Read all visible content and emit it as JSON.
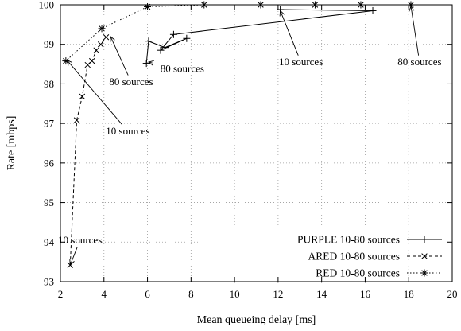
{
  "chart_data": {
    "type": "line",
    "xlabel": "Mean queueing delay [ms]",
    "ylabel": "Rate [mbps]",
    "xlim": [
      2,
      20
    ],
    "ylim": [
      93,
      100
    ],
    "xticks": [
      2,
      4,
      6,
      8,
      10,
      12,
      14,
      16,
      18,
      20
    ],
    "yticks": [
      93,
      94,
      95,
      96,
      97,
      98,
      99,
      100
    ],
    "x_tick_labels": [
      "2",
      "4",
      "6",
      "8",
      "10",
      "12",
      "14",
      "16",
      "18",
      "20"
    ],
    "y_tick_labels": [
      "93",
      "94",
      "95",
      "96",
      "97",
      "98",
      "99",
      "100"
    ],
    "grid": true,
    "legend_position": "bottom-right",
    "series": [
      {
        "name": "PURPLE 10-80 sources",
        "marker": "plus",
        "dash": "solid",
        "points": [
          [
            5.95,
            98.52
          ],
          [
            6.05,
            99.08
          ],
          [
            6.8,
            98.92
          ],
          [
            7.8,
            99.15
          ],
          [
            6.6,
            98.85
          ],
          [
            7.2,
            99.25
          ],
          [
            16.35,
            99.85
          ],
          [
            12.1,
            99.88
          ]
        ]
      },
      {
        "name": "ARED 10-80 sources",
        "marker": "cross",
        "dash": "dashed",
        "points": [
          [
            2.45,
            93.42
          ],
          [
            2.75,
            97.08
          ],
          [
            3.0,
            97.68
          ],
          [
            3.25,
            98.48
          ],
          [
            3.45,
            98.58
          ],
          [
            3.65,
            98.85
          ],
          [
            3.85,
            99.0
          ],
          [
            4.1,
            99.18
          ]
        ]
      },
      {
        "name": "RED 10-80 sources",
        "marker": "star",
        "dash": "dotted",
        "points": [
          [
            18.1,
            100.0
          ],
          [
            15.8,
            100.0
          ],
          [
            13.7,
            100.0
          ],
          [
            11.2,
            100.0
          ],
          [
            8.6,
            100.0
          ],
          [
            6.0,
            99.95
          ],
          [
            3.9,
            99.4
          ],
          [
            2.25,
            98.58
          ]
        ]
      }
    ],
    "annotations": [
      {
        "text": "10 sources",
        "label_at": [
          2.9,
          94.05
        ],
        "arrow_to": [
          2.45,
          93.42
        ]
      },
      {
        "text": "10 sources",
        "label_at": [
          5.1,
          96.8
        ],
        "arrow_to": [
          2.3,
          98.6
        ]
      },
      {
        "text": "80 sources",
        "label_at": [
          5.25,
          98.05
        ],
        "arrow_to": [
          4.3,
          99.2
        ]
      },
      {
        "text": "80 sources",
        "label_at": [
          7.6,
          98.38
        ],
        "arrow_to": [
          6.05,
          98.55
        ]
      },
      {
        "text": "10 sources",
        "label_at": [
          13.05,
          98.55
        ],
        "arrow_to": [
          12.1,
          99.85
        ]
      },
      {
        "text": "80 sources",
        "label_at": [
          18.5,
          98.55
        ],
        "arrow_to": [
          18.1,
          99.97
        ]
      }
    ]
  }
}
